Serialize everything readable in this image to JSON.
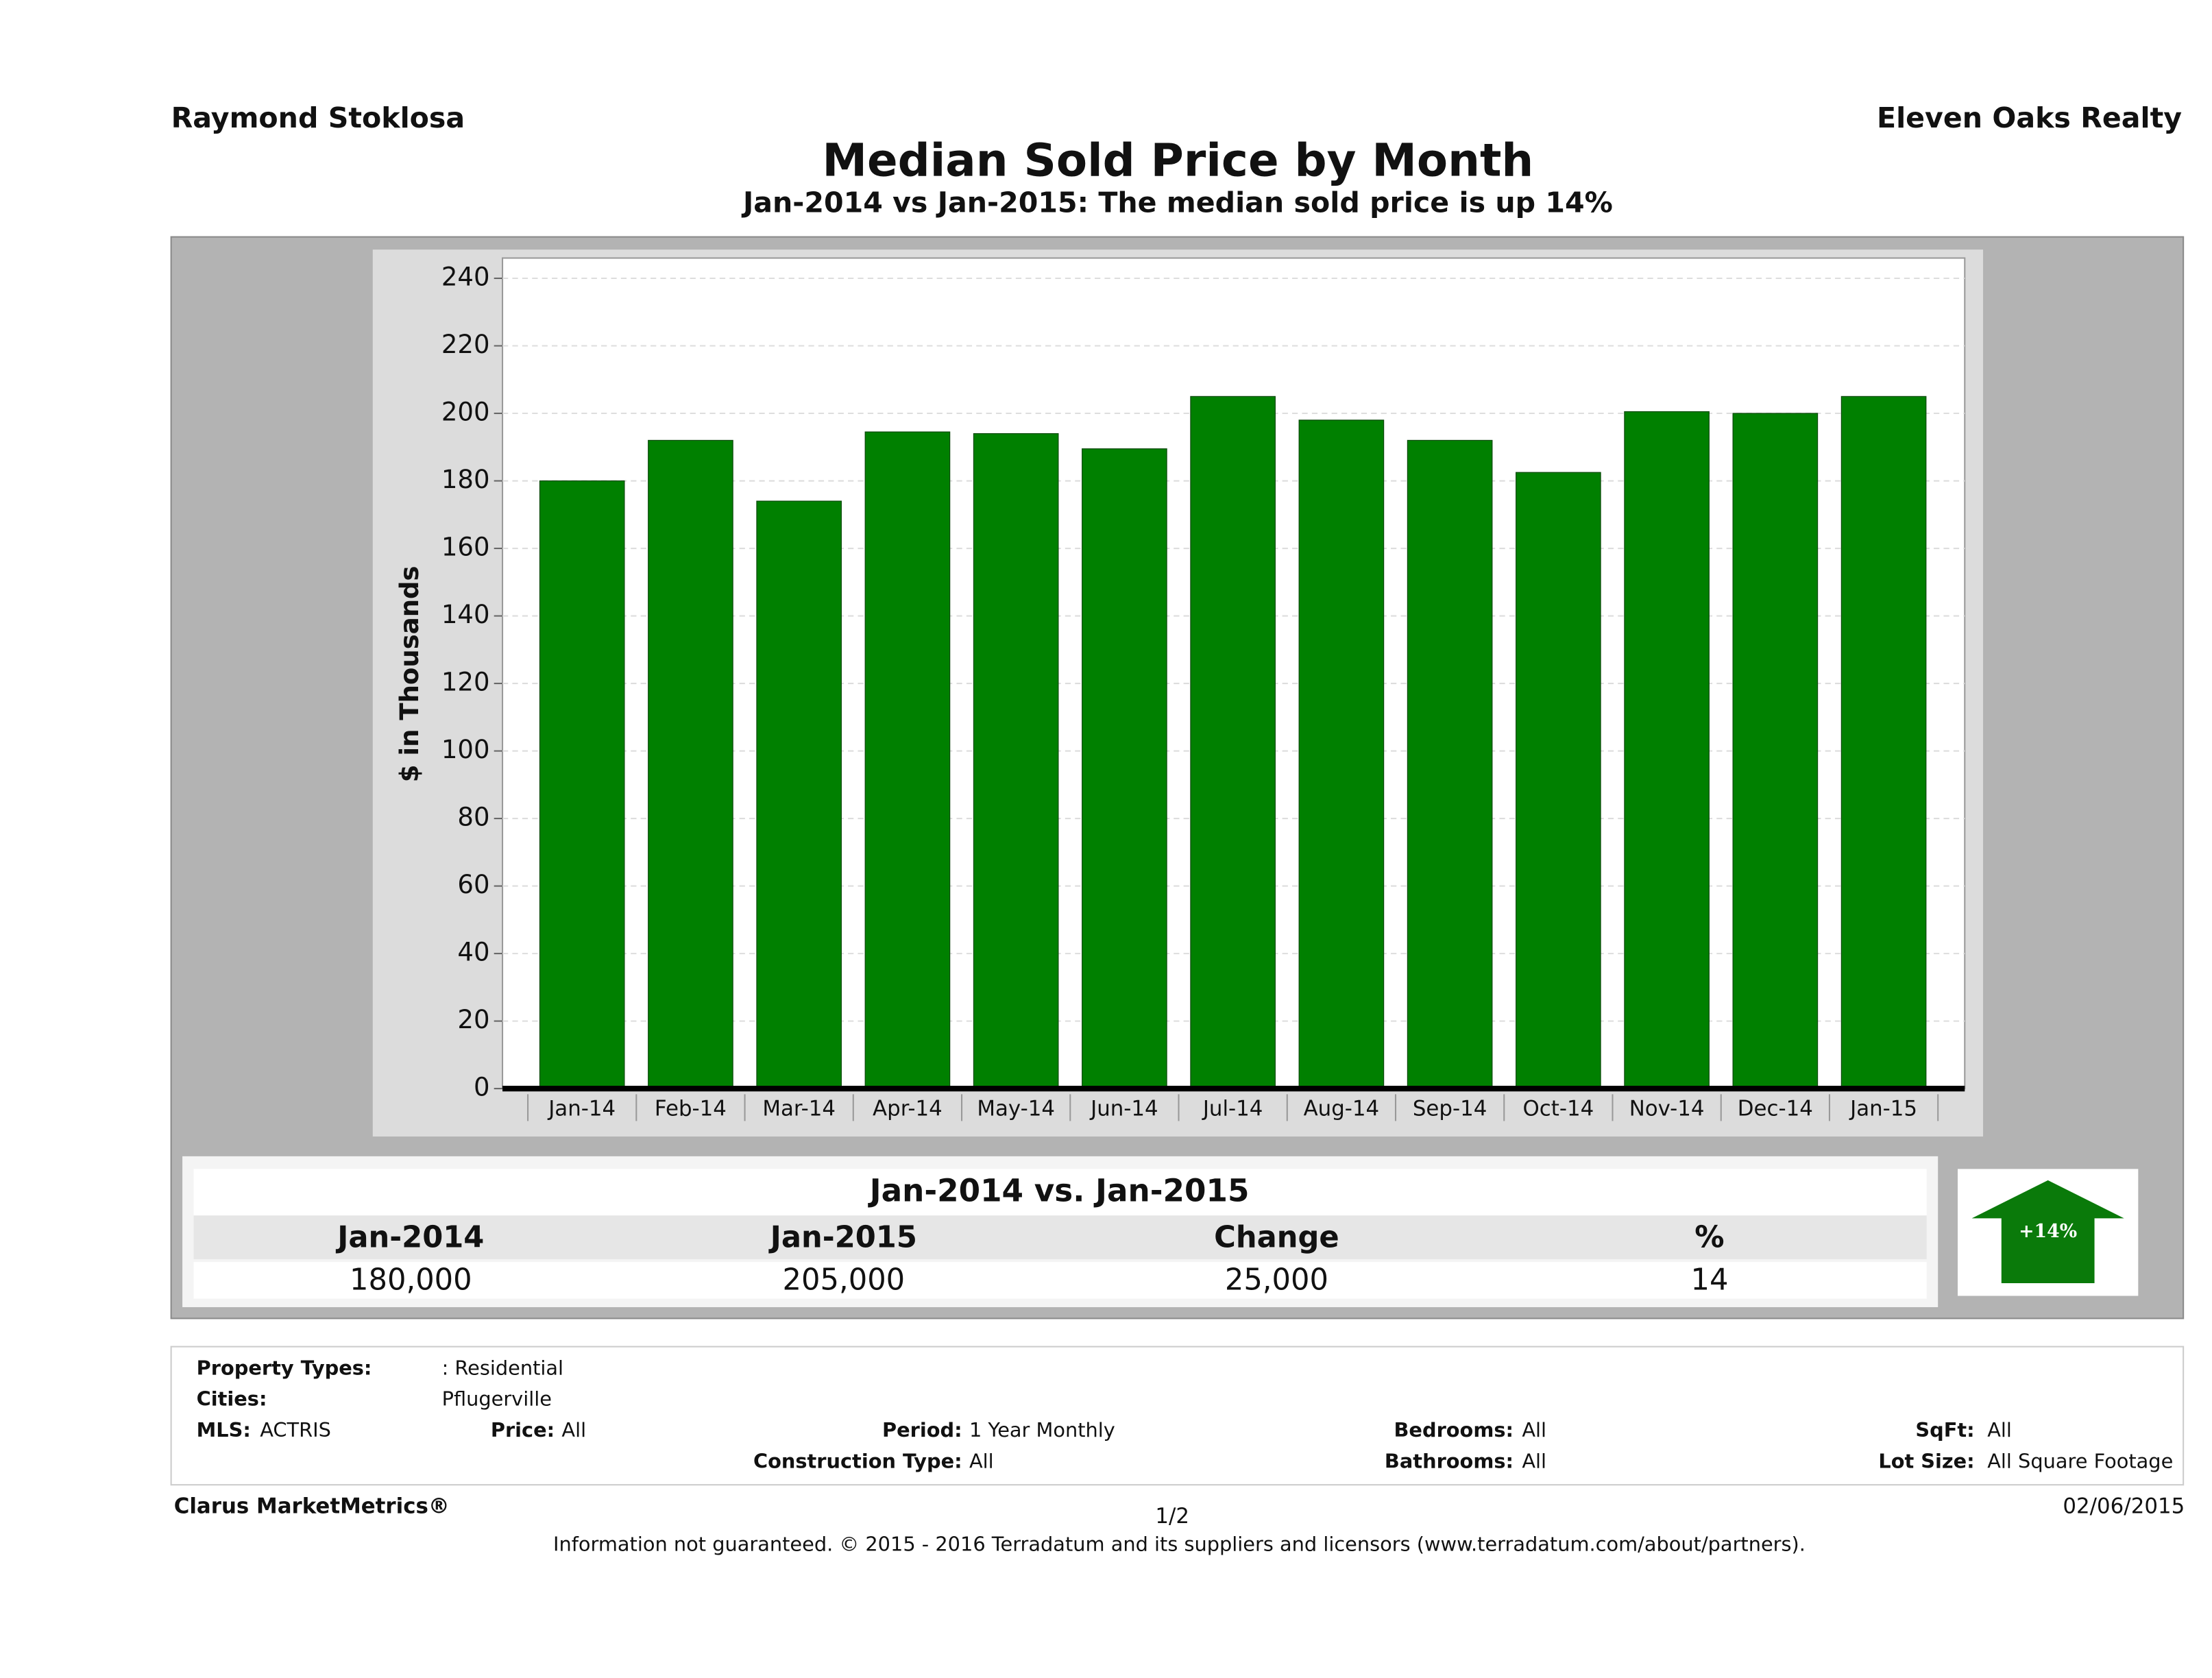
{
  "header": {
    "left": "Raymond Stoklosa",
    "right": "Eleven Oaks Realty"
  },
  "chart_data": {
    "type": "bar",
    "title": "Median Sold Price by Month",
    "subtitle": "Jan-2014 vs Jan-2015: The median sold price is up 14%",
    "y_label": "$ in Thousands",
    "categories": [
      "Jan-14",
      "Feb-14",
      "Mar-14",
      "Apr-14",
      "May-14",
      "Jun-14",
      "Jul-14",
      "Aug-14",
      "Sep-14",
      "Oct-14",
      "Nov-14",
      "Dec-14",
      "Jan-15"
    ],
    "values": [
      180,
      192,
      174,
      194.5,
      194,
      189.5,
      205,
      198,
      192,
      182.5,
      200.5,
      200,
      205
    ],
    "color": "#008000",
    "ylim": [
      0,
      246
    ],
    "yticks": [
      0,
      20,
      40,
      60,
      80,
      100,
      120,
      140,
      160,
      180,
      200,
      220,
      240
    ],
    "grid": true
  },
  "summary": {
    "title": "Jan-2014 vs. Jan-2015",
    "headers": [
      "Jan-2014",
      "Jan-2015",
      "Change",
      "%"
    ],
    "row": [
      "180,000",
      "205,000",
      "25,000",
      "14"
    ],
    "badge": "+14%"
  },
  "details": {
    "property_types": {
      "label": "Property Types:",
      "value": ": Residential"
    },
    "cities": {
      "label": "Cities:",
      "value": "Pflugerville"
    },
    "mls": {
      "label": "MLS:",
      "value": "ACTRIS"
    },
    "price": {
      "label": "Price:",
      "value": "All"
    },
    "period": {
      "label": "Period:",
      "value": "1 Year Monthly"
    },
    "bedrooms": {
      "label": "Bedrooms:",
      "value": "All"
    },
    "sqft": {
      "label": "SqFt:",
      "value": "All"
    },
    "construction_type": {
      "label": "Construction Type:",
      "value": "All"
    },
    "bathrooms": {
      "label": "Bathrooms:",
      "value": "All"
    },
    "lot_size": {
      "label": "Lot Size:",
      "value": "All Square Footage"
    }
  },
  "footer": {
    "brand": "Clarus MarketMetrics®",
    "page": "1/2",
    "date": "02/06/2015",
    "disclaimer": "Information not guaranteed. © 2015 - 2016 Terradatum and its suppliers and licensors (www.terradatum.com/about/partners)."
  }
}
